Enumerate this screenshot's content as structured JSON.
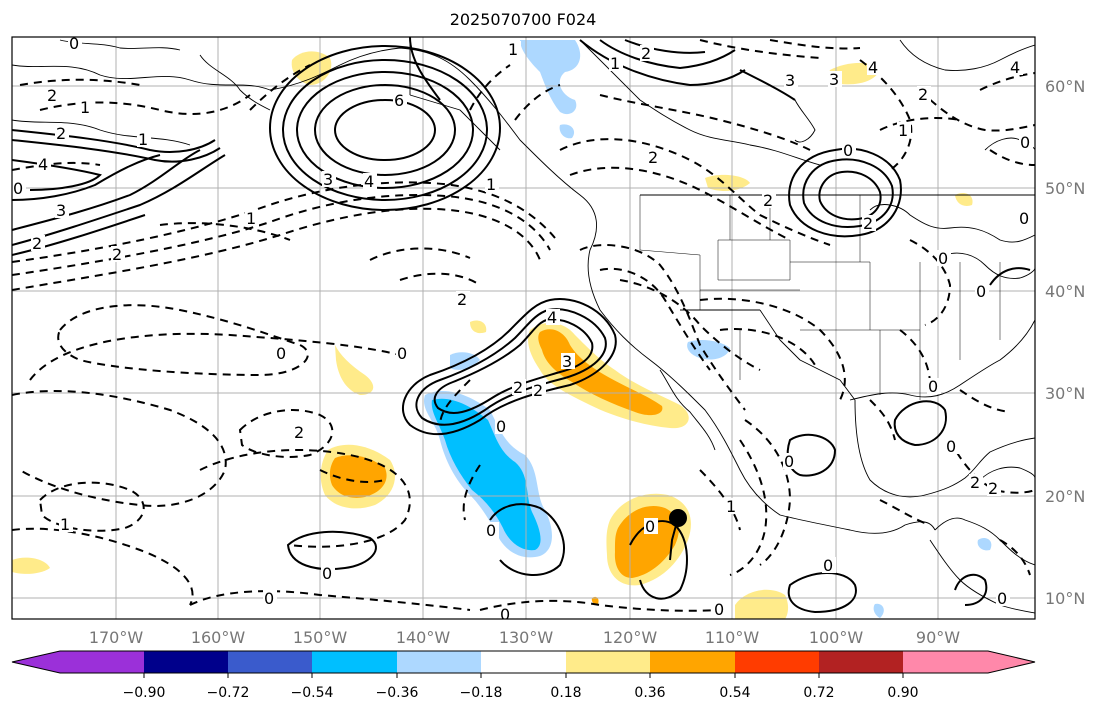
{
  "title": "2025070700 F024",
  "lon_labels": [
    "170°W",
    "160°W",
    "150°W",
    "140°W",
    "130°W",
    "120°W",
    "110°W",
    "100°W",
    "90°W"
  ],
  "lat_labels": [
    "60°N",
    "50°N",
    "40°N",
    "30°N",
    "20°N",
    "10°N"
  ],
  "colorbar": {
    "ticks": [
      "−0.90",
      "−0.72",
      "−0.54",
      "−0.36",
      "−0.18",
      "0.18",
      "0.36",
      "0.54",
      "0.72",
      "0.90"
    ],
    "colors": [
      "#9b30d9",
      "#00008b",
      "#3a5bcc",
      "#00bfff",
      "#add8ff",
      "#ffffff",
      "#ffeb8a",
      "#ffa500",
      "#ff3c00",
      "#b22222",
      "#ff88aa"
    ]
  },
  "contour_labels": [
    "2",
    "1",
    "2",
    "1",
    "4",
    "2",
    "3",
    "6",
    "3",
    "4",
    "1",
    "2",
    "2",
    "1",
    "2",
    "1",
    "3",
    "4",
    "2",
    "1",
    "0",
    "2",
    "2",
    "0",
    "2",
    "0",
    "4",
    "3",
    "2",
    "2",
    "0",
    "2",
    "0",
    "0",
    "0",
    "1",
    "1",
    "0",
    "0",
    "0",
    "0",
    "0",
    "2",
    "4",
    "3",
    "0",
    "2",
    "0",
    "0",
    "0",
    "0",
    "0",
    "0",
    "0",
    "0",
    "1"
  ],
  "colors": {
    "shade_light_blue": "#add8ff",
    "shade_blue": "#00bfff",
    "shade_yellow": "#ffeb8a",
    "shade_orange": "#ffa500"
  },
  "marker": "storm-center-dot"
}
